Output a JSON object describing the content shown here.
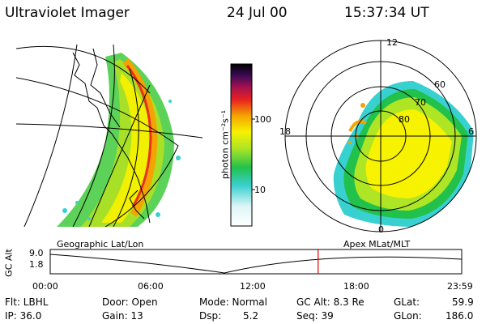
{
  "header": {
    "instrument": "Ultraviolet Imager",
    "date": "24 Jul 00",
    "time": "15:37:34 UT"
  },
  "colorbar": {
    "label": "photon cm⁻²s⁻¹",
    "tick_100": "100",
    "tick_10": "10",
    "scale": "log",
    "colors": [
      "#ffffff",
      "#dff6f6",
      "#39d0d0",
      "#22c14c",
      "#aee524",
      "#f6f200",
      "#f5a300",
      "#e82020",
      "#a01050",
      "#3a0a55",
      "#000000"
    ]
  },
  "left_panel": {
    "caption": "Geographic Lat/Lon"
  },
  "right_panel": {
    "caption": "Apex MLat/MLT",
    "mlt_labels": {
      "top": "12",
      "left": "18",
      "right": "6",
      "bottom": "0"
    },
    "lat_labels": [
      "60",
      "70",
      "80"
    ]
  },
  "timeline": {
    "ylabel": "GC Alt",
    "y_top": "9.0",
    "y_bottom": "1.8",
    "x_labels": [
      "00:00",
      "06:00",
      "12:00",
      "18:00",
      "23:59"
    ],
    "current_time_fraction": 0.6511,
    "marker_color": "#e00000"
  },
  "status": {
    "flt": "Flt: LBHL",
    "ip": "IP: 36.0",
    "door": "Door: Open",
    "gain": "Gain: 13",
    "mode": "Mode: Normal",
    "dsp_label": "Dsp:",
    "dsp_value": "5.2",
    "gcalt": "GC Alt: 8.3 Re",
    "seq": "Seq: 39",
    "glat_label": "GLat:",
    "glat_value": "59.9",
    "glon_label": "GLon:",
    "glon_value": "186.0"
  }
}
